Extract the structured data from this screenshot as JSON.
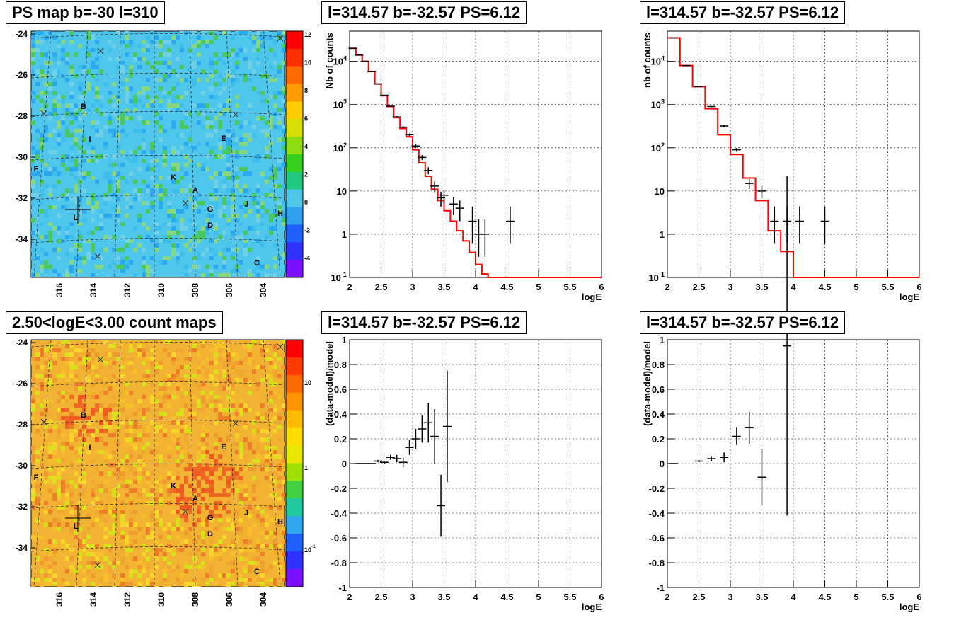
{
  "titles": {
    "map_top": "PS map b=-30 l=310",
    "map_bottom": "2.50<logE<3.00 count maps",
    "spec_left": "l=314.57 b=-32.57 PS=6.12",
    "spec_right": "l=314.57 b=-32.57 PS=6.12",
    "res_left": "l=314.57 b=-32.57 PS=6.12",
    "res_right": "l=314.57 b=-32.57 PS=6.12"
  },
  "maps": {
    "b_ticks": [
      "-24",
      "-26",
      "-28",
      "-30",
      "-32",
      "-34"
    ],
    "l_ticks": [
      "316",
      "314",
      "312",
      "310",
      "308",
      "306",
      "304"
    ],
    "top_palette_labels": [
      "12",
      "10",
      "8",
      "6",
      "4",
      "2",
      "0",
      "-2",
      "-4"
    ],
    "bottom_palette_labels": [
      "10",
      "1",
      "10-1"
    ],
    "source_labels": [
      "B",
      "I",
      "F",
      "K",
      "A",
      "G",
      "D",
      "J",
      "H",
      "E",
      "C",
      "L"
    ],
    "colors": {
      "top_base": "#4fc6ec",
      "bottom_base": "#f2b232"
    }
  },
  "chart_data": [
    {
      "type": "step+errorbar",
      "panel": "spec_left",
      "title": "l=314.57 b=-32.57 PS=6.12",
      "xlabel": "logE",
      "ylabel": "Nb of counts",
      "xlim": [
        2,
        6
      ],
      "ylim": [
        0.1,
        50000
      ],
      "yscale": "log",
      "x_ticks": [
        "2",
        "2.5",
        "3",
        "3.5",
        "4",
        "4.5",
        "5",
        "5.5",
        "6"
      ],
      "y_ticks": [
        "10-1",
        "1",
        "10",
        "102",
        "103",
        "104"
      ],
      "grid": true,
      "model": {
        "color": "#ff0000",
        "edges": [
          2.0,
          2.1,
          2.2,
          2.3,
          2.4,
          2.5,
          2.6,
          2.7,
          2.8,
          2.9,
          3.0,
          3.1,
          3.2,
          3.3,
          3.4,
          3.5,
          3.6,
          3.7,
          3.8,
          3.9,
          4.0,
          4.1,
          4.2,
          6.0
        ],
        "values": [
          20000,
          14000,
          10000,
          5800,
          3000,
          1600,
          900,
          500,
          280,
          180,
          90,
          45,
          22,
          11,
          6,
          3.5,
          2,
          1.2,
          0.7,
          0.38,
          0.2,
          0.12,
          0.1
        ]
      },
      "data": [
        {
          "x": 2.05,
          "y": 20000
        },
        {
          "x": 2.15,
          "y": 14000
        },
        {
          "x": 2.25,
          "y": 10000
        },
        {
          "x": 2.35,
          "y": 5800
        },
        {
          "x": 2.45,
          "y": 3000
        },
        {
          "x": 2.55,
          "y": 1650
        },
        {
          "x": 2.65,
          "y": 920
        },
        {
          "x": 2.75,
          "y": 520
        },
        {
          "x": 2.85,
          "y": 300
        },
        {
          "x": 2.95,
          "y": 200
        },
        {
          "x": 3.05,
          "y": 110
        },
        {
          "x": 3.15,
          "y": 60
        },
        {
          "x": 3.25,
          "y": 30
        },
        {
          "x": 3.35,
          "y": 13
        },
        {
          "x": 3.45,
          "y": 7
        },
        {
          "x": 3.5,
          "y": 8
        },
        {
          "x": 3.65,
          "y": 5
        },
        {
          "x": 3.75,
          "y": 4
        },
        {
          "x": 3.95,
          "y": 2
        },
        {
          "x": 4.05,
          "y": 1
        },
        {
          "x": 4.15,
          "y": 1
        },
        {
          "x": 4.55,
          "y": 2
        }
      ]
    },
    {
      "type": "step+errorbar",
      "panel": "spec_right",
      "title": "l=314.57 b=-32.57 PS=6.12",
      "xlabel": "logE",
      "ylabel": "nb of counts",
      "xlim": [
        2,
        6
      ],
      "ylim": [
        0.1,
        50000
      ],
      "yscale": "log",
      "x_ticks": [
        "2",
        "2.5",
        "3",
        "3.5",
        "4",
        "4.5",
        "5",
        "5.5",
        "6"
      ],
      "y_ticks": [
        "10-1",
        "1",
        "10",
        "102",
        "103",
        "104"
      ],
      "grid": true,
      "model": {
        "color": "#ff0000",
        "edges": [
          2.0,
          2.2,
          2.4,
          2.6,
          2.8,
          3.0,
          3.2,
          3.4,
          3.6,
          3.8,
          4.0,
          4.2,
          6.0
        ],
        "values": [
          35000,
          8000,
          2600,
          800,
          200,
          70,
          20,
          6,
          1.2,
          0.4,
          0.1,
          0.1
        ]
      },
      "data": [
        {
          "x": 2.1,
          "y": 35000
        },
        {
          "x": 2.3,
          "y": 8000
        },
        {
          "x": 2.5,
          "y": 2600
        },
        {
          "x": 2.7,
          "y": 900
        },
        {
          "x": 2.9,
          "y": 320
        },
        {
          "x": 3.1,
          "y": 90
        },
        {
          "x": 3.3,
          "y": 15
        },
        {
          "x": 3.5,
          "y": 10
        },
        {
          "x": 3.7,
          "y": 2
        },
        {
          "x": 3.9,
          "y": 2
        },
        {
          "x": 4.1,
          "y": 2
        },
        {
          "x": 4.5,
          "y": 2
        }
      ]
    },
    {
      "type": "errorbar",
      "panel": "res_left",
      "title": "l=314.57 b=-32.57 PS=6.12",
      "xlabel": "logE",
      "ylabel": "(data-model)/model",
      "xlim": [
        2,
        6
      ],
      "ylim": [
        -1,
        1
      ],
      "x_ticks": [
        "2",
        "2.5",
        "3",
        "3.5",
        "4",
        "4.5",
        "5",
        "5.5",
        "6"
      ],
      "y_ticks": [
        "-1",
        "-0.8",
        "-0.6",
        "-0.4",
        "-0.2",
        "0",
        "0.2",
        "0.4",
        "0.6",
        "0.8",
        "1"
      ],
      "grid": true,
      "data": [
        {
          "x": 2.15,
          "y": 0.0,
          "e": 0.005
        },
        {
          "x": 2.25,
          "y": 0.0,
          "e": 0.005
        },
        {
          "x": 2.35,
          "y": 0.0,
          "e": 0.005
        },
        {
          "x": 2.45,
          "y": 0.02,
          "e": 0.01
        },
        {
          "x": 2.55,
          "y": 0.01,
          "e": 0.01
        },
        {
          "x": 2.65,
          "y": 0.05,
          "e": 0.02
        },
        {
          "x": 2.75,
          "y": 0.04,
          "e": 0.03
        },
        {
          "x": 2.85,
          "y": 0.01,
          "e": 0.04
        },
        {
          "x": 2.95,
          "y": 0.13,
          "e": 0.06
        },
        {
          "x": 3.05,
          "y": 0.2,
          "e": 0.08
        },
        {
          "x": 3.15,
          "y": 0.28,
          "e": 0.11
        },
        {
          "x": 3.25,
          "y": 0.33,
          "e": 0.16
        },
        {
          "x": 3.35,
          "y": 0.22,
          "e": 0.22
        },
        {
          "x": 3.45,
          "y": -0.34,
          "e": 0.25
        },
        {
          "x": 3.55,
          "y": 0.3,
          "e": 0.45
        }
      ]
    },
    {
      "type": "errorbar",
      "panel": "res_right",
      "title": "l=314.57 b=-32.57 PS=6.12",
      "xlabel": "logE",
      "ylabel": "(data-model)/model",
      "xlim": [
        2,
        6
      ],
      "ylim": [
        -1,
        1
      ],
      "x_ticks": [
        "2",
        "2.5",
        "3",
        "3.5",
        "4",
        "4.5",
        "5",
        "5.5",
        "6"
      ],
      "y_ticks": [
        "-1",
        "-0.8",
        "-0.6",
        "-0.4",
        "-0.2",
        "0",
        "0.2",
        "0.4",
        "0.6",
        "0.8",
        "1"
      ],
      "grid": true,
      "data": [
        {
          "x": 2.1,
          "y": 0.0,
          "e": 0.005
        },
        {
          "x": 2.5,
          "y": 0.02,
          "e": 0.01
        },
        {
          "x": 2.7,
          "y": 0.04,
          "e": 0.02
        },
        {
          "x": 2.9,
          "y": 0.05,
          "e": 0.04
        },
        {
          "x": 3.1,
          "y": 0.22,
          "e": 0.07
        },
        {
          "x": 3.3,
          "y": 0.29,
          "e": 0.13
        },
        {
          "x": 3.5,
          "y": -0.11,
          "e": 0.23
        },
        {
          "x": 3.9,
          "y": 0.95,
          "e": 1.37
        }
      ]
    }
  ]
}
